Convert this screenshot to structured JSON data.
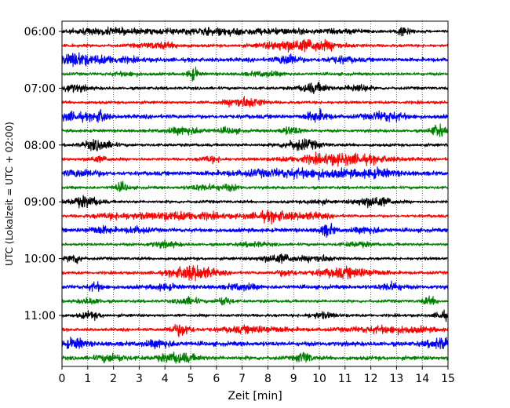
{
  "chart_data": {
    "type": "line",
    "title": "",
    "xlabel": "Zeit  [min]",
    "ylabel": "UTC (Lokalzeit = UTC + 02:00)",
    "xlim": [
      0,
      15
    ],
    "x_ticks": [
      "0",
      "1",
      "2",
      "3",
      "4",
      "5",
      "6",
      "7",
      "8",
      "9",
      "10",
      "11",
      "12",
      "13",
      "14",
      "15"
    ],
    "y_tick_labels": [
      "06:00",
      "07:00",
      "08:00",
      "09:00",
      "10:00",
      "11:00"
    ],
    "grid": "vertical dotted lines at each minute",
    "colors": [
      "#000000",
      "#ff0000",
      "#0000ff",
      "#008000"
    ],
    "traces": [
      {
        "start": "06:00",
        "color": "#000000",
        "base_amp": 3,
        "events": [
          [
            1.8,
            5,
            1.2
          ],
          [
            6.2,
            6,
            1.4
          ],
          [
            9.1,
            3,
            0.8
          ],
          [
            13.3,
            9,
            0.2
          ],
          [
            11.2,
            3,
            0.6
          ]
        ]
      },
      {
        "start": "06:15",
        "color": "#ff0000",
        "base_amp": 3,
        "events": [
          [
            3.8,
            5,
            0.6
          ],
          [
            9.6,
            10,
            0.9
          ],
          [
            8.5,
            4,
            0.6
          ]
        ]
      },
      {
        "start": "06:30",
        "color": "#0000ff",
        "base_amp": 4,
        "events": [
          [
            0.5,
            10,
            0.3
          ],
          [
            1.5,
            6,
            0.9
          ],
          [
            8.8,
            10,
            0.3
          ],
          [
            10.8,
            5,
            0.4
          ]
        ]
      },
      {
        "start": "06:45",
        "color": "#008000",
        "base_amp": 3,
        "events": [
          [
            5.1,
            12,
            0.15
          ],
          [
            7.9,
            4,
            0.5
          ],
          [
            2.5,
            3,
            0.4
          ]
        ]
      },
      {
        "start": "07:00",
        "color": "#000000",
        "base_amp": 3,
        "events": [
          [
            0.4,
            7,
            0.4
          ],
          [
            9.8,
            9,
            0.4
          ],
          [
            11.5,
            8,
            0.3
          ]
        ]
      },
      {
        "start": "07:15",
        "color": "#ff0000",
        "base_amp": 3,
        "events": [
          [
            6.9,
            7,
            0.4
          ],
          [
            7.4,
            5,
            0.4
          ]
        ]
      },
      {
        "start": "07:30",
        "color": "#0000ff",
        "base_amp": 4,
        "events": [
          [
            0.4,
            7,
            0.5
          ],
          [
            1.5,
            10,
            0.2
          ],
          [
            9.9,
            10,
            0.3
          ],
          [
            12.6,
            8,
            0.5
          ]
        ]
      },
      {
        "start": "07:45",
        "color": "#008000",
        "base_amp": 3,
        "events": [
          [
            4.8,
            7,
            0.5
          ],
          [
            6.5,
            5,
            0.3
          ],
          [
            8.9,
            7,
            0.3
          ],
          [
            14.6,
            12,
            0.2
          ]
        ]
      },
      {
        "start": "08:00",
        "color": "#000000",
        "base_amp": 3,
        "events": [
          [
            1.4,
            10,
            0.4
          ],
          [
            9.3,
            10,
            0.5
          ]
        ]
      },
      {
        "start": "08:15",
        "color": "#ff0000",
        "base_amp": 3,
        "events": [
          [
            1.4,
            5,
            0.3
          ],
          [
            5.8,
            5,
            0.3
          ],
          [
            10.8,
            10,
            1.3
          ]
        ]
      },
      {
        "start": "08:30",
        "color": "#0000ff",
        "base_amp": 4,
        "events": [
          [
            0.8,
            6,
            0.5
          ],
          [
            9.5,
            7,
            2.0
          ],
          [
            12.3,
            5,
            0.4
          ]
        ]
      },
      {
        "start": "08:45",
        "color": "#008000",
        "base_amp": 3,
        "events": [
          [
            2.3,
            8,
            0.2
          ],
          [
            5.5,
            5,
            0.4
          ],
          [
            6.5,
            5,
            0.3
          ]
        ]
      },
      {
        "start": "09:00",
        "color": "#000000",
        "base_amp": 3,
        "events": [
          [
            0.9,
            10,
            0.4
          ],
          [
            12.1,
            10,
            0.5
          ],
          [
            9.9,
            4,
            0.3
          ]
        ]
      },
      {
        "start": "09:15",
        "color": "#ff0000",
        "base_amp": 3,
        "events": [
          [
            4.6,
            7,
            1.3
          ],
          [
            8.2,
            9,
            0.6
          ],
          [
            9.7,
            5,
            0.5
          ],
          [
            2.0,
            4,
            0.6
          ]
        ]
      },
      {
        "start": "09:30",
        "color": "#0000ff",
        "base_amp": 4,
        "events": [
          [
            1.5,
            6,
            0.4
          ],
          [
            2.9,
            5,
            0.3
          ],
          [
            10.3,
            11,
            0.2
          ],
          [
            11.9,
            5,
            0.4
          ]
        ]
      },
      {
        "start": "09:45",
        "color": "#008000",
        "base_amp": 3,
        "events": [
          [
            4.0,
            5,
            0.4
          ],
          [
            7.5,
            4,
            0.4
          ],
          [
            11.5,
            4,
            0.4
          ]
        ]
      },
      {
        "start": "10:00",
        "color": "#000000",
        "base_amp": 3,
        "events": [
          [
            0.5,
            9,
            0.2
          ],
          [
            8.4,
            8,
            0.5
          ],
          [
            10.0,
            6,
            0.4
          ]
        ]
      },
      {
        "start": "10:15",
        "color": "#ff0000",
        "base_amp": 3,
        "events": [
          [
            5.1,
            14,
            0.6
          ],
          [
            8.7,
            5,
            0.3
          ],
          [
            11.1,
            9,
            0.9
          ]
        ]
      },
      {
        "start": "10:30",
        "color": "#0000ff",
        "base_amp": 4,
        "events": [
          [
            1.3,
            7,
            0.2
          ],
          [
            4.0,
            5,
            0.3
          ],
          [
            7.0,
            5,
            0.4
          ],
          [
            12.8,
            7,
            0.3
          ]
        ]
      },
      {
        "start": "10:45",
        "color": "#008000",
        "base_amp": 3,
        "events": [
          [
            1.1,
            5,
            0.3
          ],
          [
            4.9,
            7,
            0.3
          ],
          [
            6.3,
            8,
            0.2
          ],
          [
            14.3,
            7,
            0.2
          ]
        ]
      },
      {
        "start": "11:00",
        "color": "#000000",
        "base_amp": 3,
        "events": [
          [
            1.1,
            6,
            0.3
          ],
          [
            10.1,
            5,
            0.4
          ],
          [
            14.8,
            8,
            0.2
          ]
        ]
      },
      {
        "start": "11:15",
        "color": "#ff0000",
        "base_amp": 3,
        "events": [
          [
            4.6,
            11,
            0.3
          ],
          [
            7.5,
            6,
            1.0
          ],
          [
            12.8,
            6,
            1.2
          ]
        ]
      },
      {
        "start": "11:30",
        "color": "#0000ff",
        "base_amp": 4.5,
        "events": [
          [
            0.5,
            9,
            0.3
          ],
          [
            3.8,
            6,
            0.4
          ],
          [
            14.8,
            10,
            0.4
          ]
        ]
      },
      {
        "start": "11:45",
        "color": "#008000",
        "base_amp": 4,
        "events": [
          [
            1.9,
            6,
            0.4
          ],
          [
            4.5,
            9,
            0.5
          ],
          [
            9.4,
            10,
            0.2
          ]
        ]
      }
    ]
  }
}
